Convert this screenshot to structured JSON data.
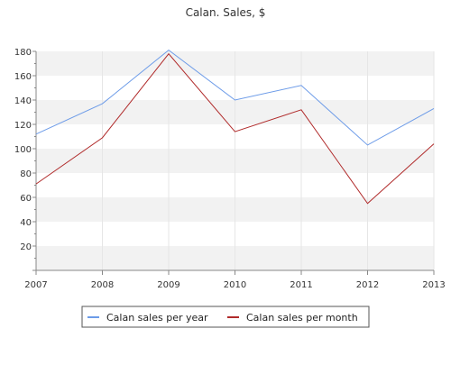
{
  "chart_data": {
    "type": "line",
    "title": "Calan. Sales, $",
    "xlabel": "",
    "ylabel": "",
    "categories": [
      "2007",
      "2008",
      "2009",
      "2010",
      "2011",
      "2012",
      "2013"
    ],
    "series": [
      {
        "name": "Calan sales per year",
        "color": "#6c9be8",
        "values": [
          112,
          137,
          181,
          140,
          152,
          103,
          133
        ]
      },
      {
        "name": "Calan sales per month",
        "color": "#b02a2a",
        "values": [
          71,
          109,
          178,
          114,
          132,
          55,
          104
        ]
      }
    ],
    "ylim": [
      0,
      180
    ],
    "yticks": [
      0,
      20,
      40,
      60,
      80,
      100,
      120,
      140,
      160,
      180
    ],
    "ytick_labels": [
      "",
      "20",
      "40",
      "60",
      "80",
      "100",
      "120",
      "140",
      "160",
      "180"
    ],
    "grid": "horizontal-bands",
    "band_color": "#f2f2f2",
    "legend_position": "bottom"
  }
}
